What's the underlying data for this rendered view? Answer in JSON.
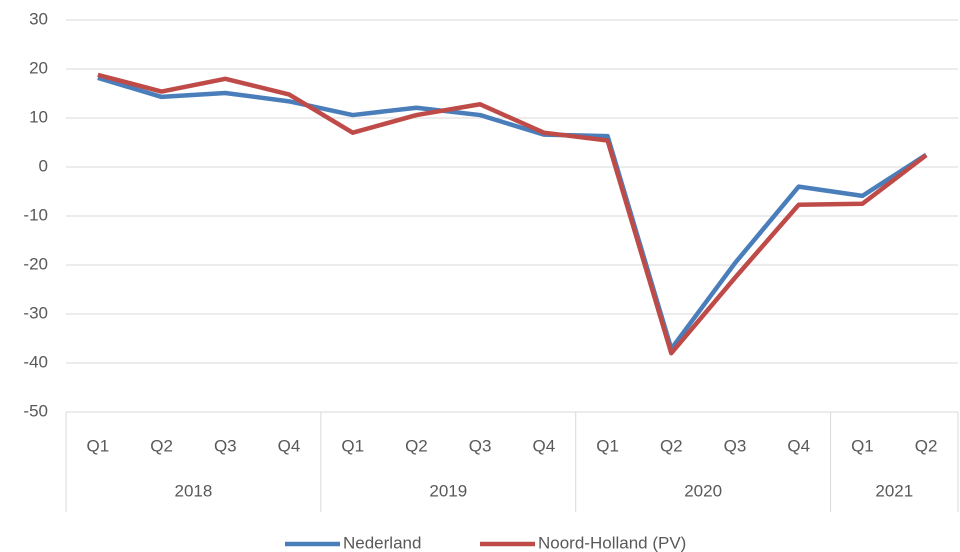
{
  "chart_data": {
    "type": "line",
    "categories": [
      "Q1",
      "Q2",
      "Q3",
      "Q4",
      "Q1",
      "Q2",
      "Q3",
      "Q4",
      "Q1",
      "Q2",
      "Q3",
      "Q4",
      "Q1",
      "Q2"
    ],
    "category_groups": [
      "2018",
      "2018",
      "2018",
      "2018",
      "2019",
      "2019",
      "2019",
      "2019",
      "2020",
      "2020",
      "2020",
      "2020",
      "2021",
      "2021"
    ],
    "series": [
      {
        "name": "Nederland",
        "color": "#4a7ebb",
        "values": [
          18.2,
          14.3,
          15.1,
          13.4,
          10.6,
          12.1,
          10.6,
          6.6,
          6.3,
          -37.1,
          -19.6,
          -4.0,
          -5.9,
          2.5
        ]
      },
      {
        "name": "Noord-Holland (PV)",
        "color": "#be4b48",
        "values": [
          18.8,
          15.4,
          18.0,
          14.8,
          7.0,
          10.6,
          12.8,
          7.0,
          5.4,
          -38.0,
          -22.6,
          -7.7,
          -7.5,
          2.4
        ]
      }
    ],
    "ylim": [
      -50,
      30
    ],
    "yticks": [
      -50,
      -40,
      -30,
      -20,
      -10,
      0,
      10,
      20,
      30
    ],
    "grid": true,
    "legend": "bottom"
  }
}
